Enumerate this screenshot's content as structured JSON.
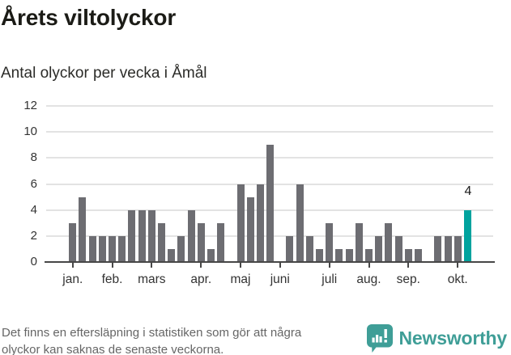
{
  "header": {
    "title": "Årets viltolyckor",
    "subtitle": "Antal olyckor per vecka i Åmål"
  },
  "chart_data": {
    "type": "bar",
    "title": "Årets viltolyckor",
    "subtitle": "Antal olyckor per vecka i Åmål",
    "x_unit": "week of year",
    "num_weeks": 41,
    "values": [
      3,
      5,
      2,
      2,
      2,
      2,
      4,
      4,
      4,
      3,
      1,
      2,
      4,
      3,
      1,
      3,
      0,
      6,
      5,
      6,
      9,
      0,
      2,
      6,
      2,
      1,
      3,
      1,
      1,
      3,
      1,
      2,
      3,
      2,
      1,
      1,
      0,
      2,
      2,
      2,
      4
    ],
    "y_ticks": [
      0,
      2,
      4,
      6,
      8,
      10,
      12
    ],
    "ylim": [
      0,
      12
    ],
    "grid": "horizontal",
    "legend": "none",
    "month_ticks": [
      {
        "label": "jan.",
        "week": 1
      },
      {
        "label": "feb.",
        "week": 5
      },
      {
        "label": "mars",
        "week": 9
      },
      {
        "label": "apr.",
        "week": 14
      },
      {
        "label": "maj",
        "week": 18
      },
      {
        "label": "juni",
        "week": 22
      },
      {
        "label": "juli",
        "week": 27
      },
      {
        "label": "aug.",
        "week": 31
      },
      {
        "label": "sep.",
        "week": 35
      },
      {
        "label": "okt.",
        "week": 40
      }
    ],
    "highlight": {
      "week": 41,
      "value": 4,
      "label": "4"
    }
  },
  "footer": {
    "note_line1": "Det finns en eftersläpning i statistiken som gör att några",
    "note_line2": "olyckor kan saknas de senaste veckorna."
  },
  "brand": {
    "name": "Newsworthy",
    "icon": "newsworthy-speech-bubble-chart-icon"
  },
  "colors": {
    "bar": "#6d6d72",
    "bar_highlight": "#00a39e",
    "gridline": "#e3e3e3",
    "axis": "#474747",
    "brand_teal": "#3f9e97",
    "title_text": "#1b1b16",
    "axis_text": "#333333",
    "note_text": "#666666"
  }
}
